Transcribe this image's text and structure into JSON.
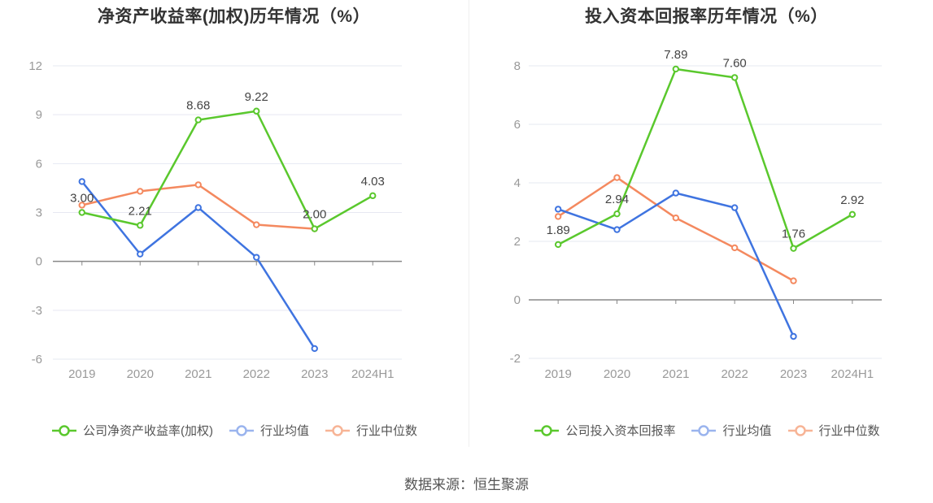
{
  "colors": {
    "company": "#5ac82d",
    "avg": "#3f74e0",
    "median": "#f4895f"
  },
  "source": "数据来源：恒生聚源",
  "chart_data": [
    {
      "type": "line",
      "title": "净资产收益率(加权)历年情况（%）",
      "categories": [
        "2019",
        "2020",
        "2021",
        "2022",
        "2023",
        "2024H1"
      ],
      "ylim": [
        -6,
        12
      ],
      "yticks": [
        -6,
        -3,
        0,
        3,
        6,
        9,
        12
      ],
      "grid": true,
      "legend_position": "bottom",
      "series": [
        {
          "key": "company",
          "name": "公司净资产收益率(加权)",
          "values": [
            3.0,
            2.21,
            8.68,
            9.22,
            2.0,
            4.03
          ],
          "labels": [
            "3.00",
            "2.21",
            "8.68",
            "9.22",
            "2.00",
            "4.03"
          ]
        },
        {
          "key": "avg",
          "name": "行业均值",
          "values": [
            4.9,
            0.45,
            3.3,
            0.25,
            -5.35,
            null
          ]
        },
        {
          "key": "median",
          "name": "行业中位数",
          "values": [
            3.45,
            4.3,
            4.7,
            2.25,
            2.0,
            null
          ]
        }
      ]
    },
    {
      "type": "line",
      "title": "投入资本回报率历年情况（%）",
      "categories": [
        "2019",
        "2020",
        "2021",
        "2022",
        "2023",
        "2024H1"
      ],
      "ylim": [
        -2,
        8
      ],
      "yticks": [
        -2,
        0,
        2,
        4,
        6,
        8
      ],
      "grid": true,
      "legend_position": "bottom",
      "series": [
        {
          "key": "company",
          "name": "公司投入资本回报率",
          "values": [
            1.89,
            2.94,
            7.89,
            7.6,
            1.76,
            2.92
          ],
          "labels": [
            "1.89",
            "2.94",
            "7.89",
            "7.60",
            "1.76",
            "2.92"
          ]
        },
        {
          "key": "avg",
          "name": "行业均值",
          "values": [
            3.1,
            2.4,
            3.65,
            3.15,
            -1.25,
            null
          ]
        },
        {
          "key": "median",
          "name": "行业中位数",
          "values": [
            2.85,
            4.18,
            2.8,
            1.78,
            0.65,
            null
          ]
        }
      ]
    }
  ]
}
